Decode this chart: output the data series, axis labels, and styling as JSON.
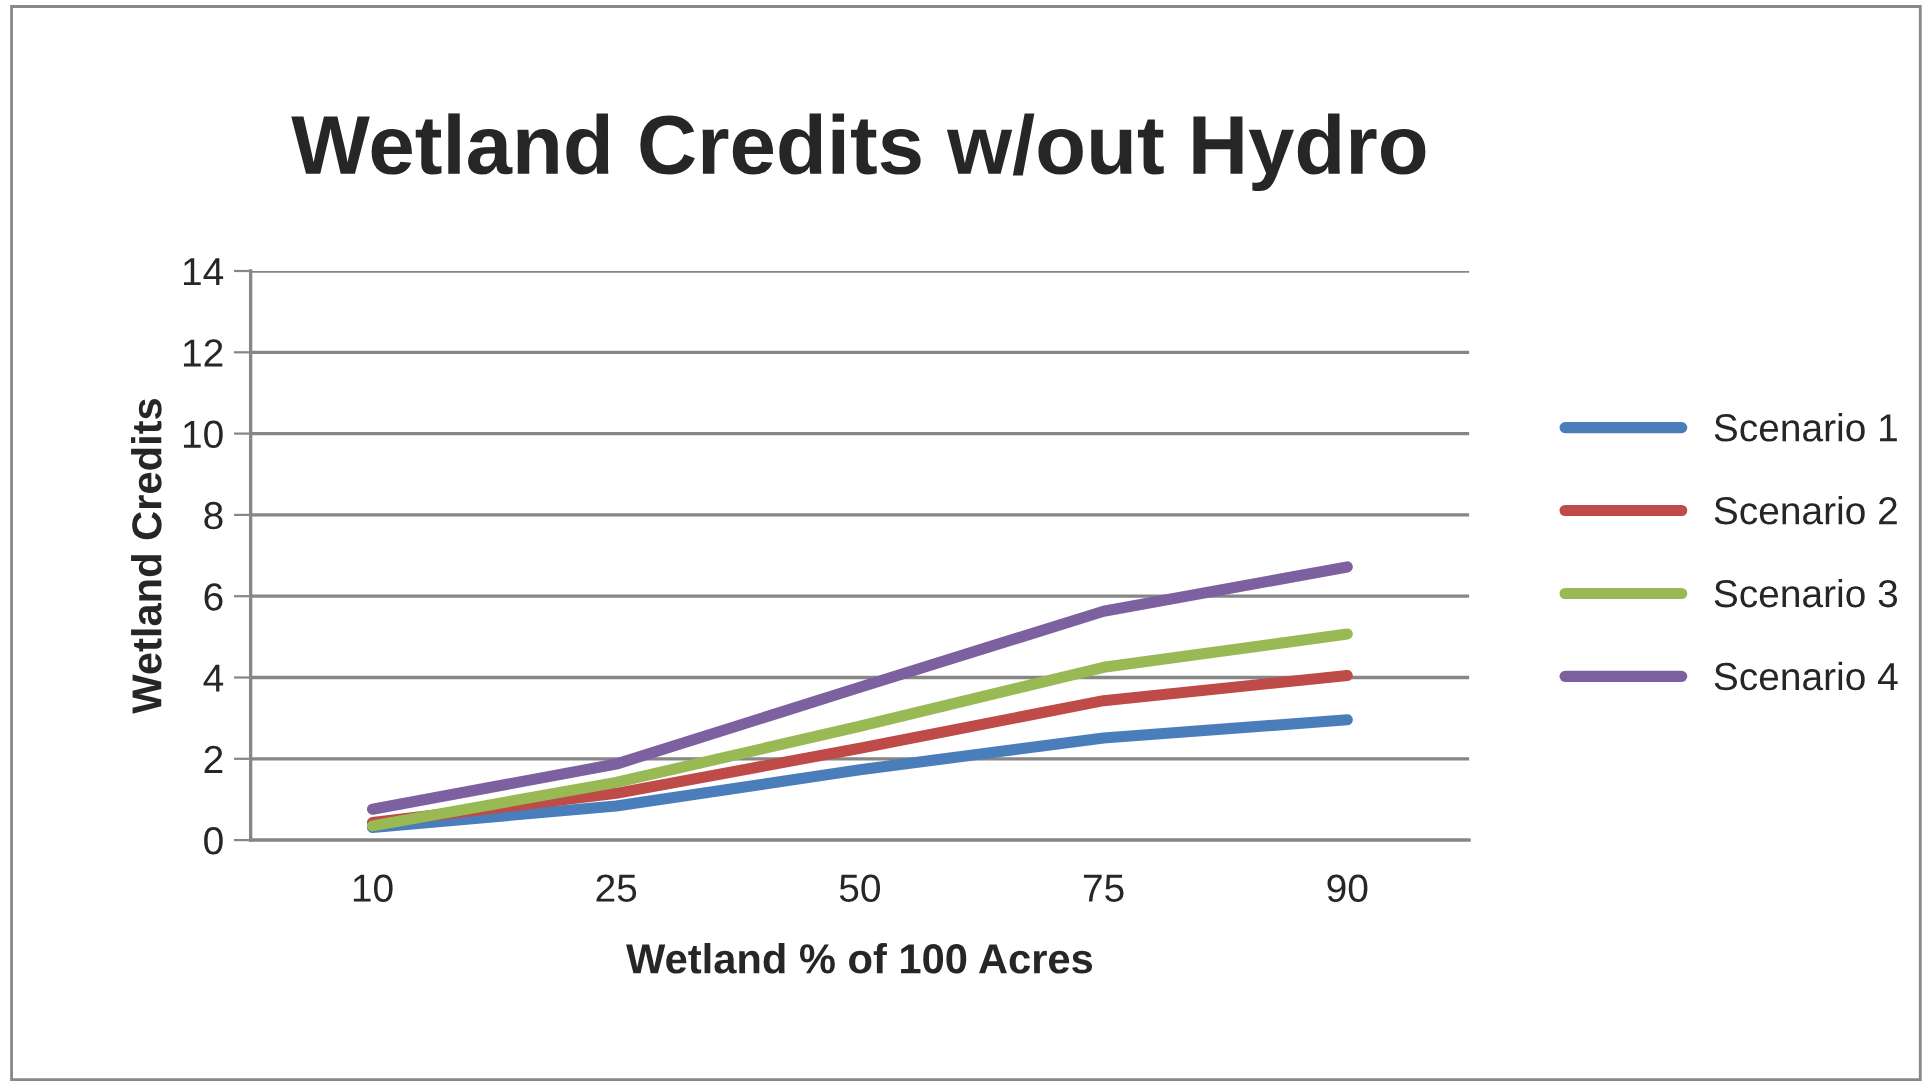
{
  "chart_data": {
    "type": "line",
    "title": "Wetland Credits w/out Hydro",
    "xlabel": "Wetland % of 100 Acres",
    "ylabel": "Wetland Credits",
    "categories": [
      "10",
      "25",
      "50",
      "75",
      "90"
    ],
    "series": [
      {
        "name": "Scenario 1",
        "color": "#4a7ebb",
        "values": [
          0.31,
          0.84,
          1.73,
          2.51,
          2.96
        ]
      },
      {
        "name": "Scenario 2",
        "color": "#be4b48",
        "values": [
          0.43,
          1.15,
          2.26,
          3.43,
          4.05
        ]
      },
      {
        "name": "Scenario 3",
        "color": "#98b954",
        "values": [
          0.35,
          1.42,
          2.8,
          4.25,
          5.07
        ]
      },
      {
        "name": "Scenario 4",
        "color": "#7d60a0",
        "values": [
          0.76,
          1.87,
          3.76,
          5.63,
          6.72
        ]
      }
    ],
    "ylim": [
      0,
      14
    ],
    "yticks": [
      0,
      2,
      4,
      6,
      8,
      10,
      12,
      14
    ],
    "grid": "y",
    "legend": "right",
    "marker": "none",
    "line_style": "solid"
  }
}
